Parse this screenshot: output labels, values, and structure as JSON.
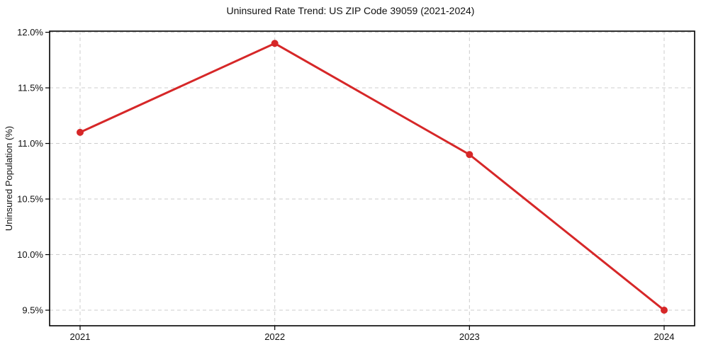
{
  "chart_data": {
    "type": "line",
    "title": "Uninsured Rate Trend: US ZIP Code 39059 (2021-2024)",
    "xlabel": "",
    "ylabel": "Uninsured Population (%)",
    "categories": [
      "2021",
      "2022",
      "2023",
      "2024"
    ],
    "series": [
      {
        "name": "Uninsured Population (%)",
        "values": [
          11.1,
          11.9,
          10.9,
          9.5
        ],
        "color": "#d62728",
        "marker": "circle",
        "line_width": 3,
        "marker_radius": 5
      }
    ],
    "ylim": [
      9.36,
      12.01
    ],
    "yticks": {
      "values": [
        9.5,
        10.0,
        10.5,
        11.0,
        11.5,
        12.0
      ],
      "labels": [
        "9.5%",
        "10.0%",
        "10.5%",
        "11.0%",
        "11.5%",
        "12.0%"
      ]
    },
    "grid": {
      "visible": true,
      "style": "dashed",
      "color": "#cccccc"
    },
    "legend": {
      "visible": false,
      "position": "none"
    },
    "axis_color": "#000000",
    "text_color": "#111111",
    "background": "#ffffff"
  }
}
